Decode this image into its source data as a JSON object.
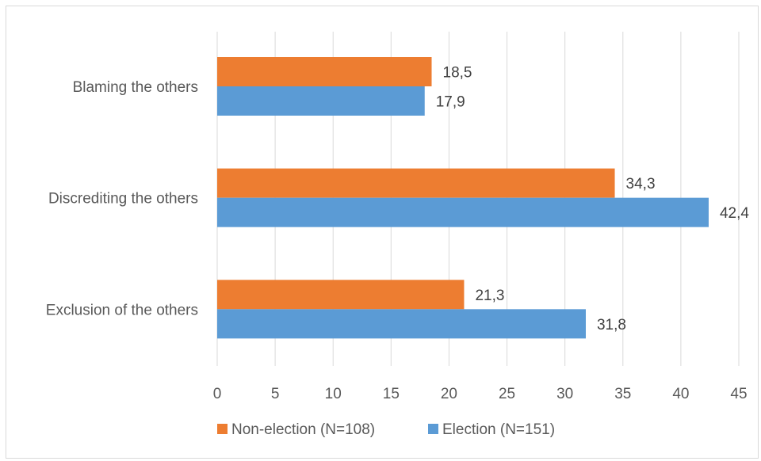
{
  "chart_data": {
    "type": "bar",
    "orientation": "horizontal",
    "title": "",
    "xlabel": "",
    "ylabel": "",
    "categories": [
      "Blaming the others",
      "Discrediting the others",
      "Exclusion of the others"
    ],
    "series": [
      {
        "name": "Non-election (N=108)",
        "color": "#ed7d31",
        "values": [
          18.5,
          34.3,
          21.3
        ],
        "labels": [
          "18,5",
          "34,3",
          "21,3"
        ]
      },
      {
        "name": "Election (N=151)",
        "color": "#5b9bd5",
        "values": [
          17.9,
          42.4,
          31.8
        ],
        "labels": [
          "17,9",
          "42,4",
          "31,8"
        ]
      }
    ],
    "xlim": [
      0,
      45
    ],
    "xticks": [
      0,
      5,
      10,
      15,
      20,
      25,
      30,
      35,
      40,
      45
    ],
    "grid": "vertical",
    "legend_position": "bottom"
  }
}
